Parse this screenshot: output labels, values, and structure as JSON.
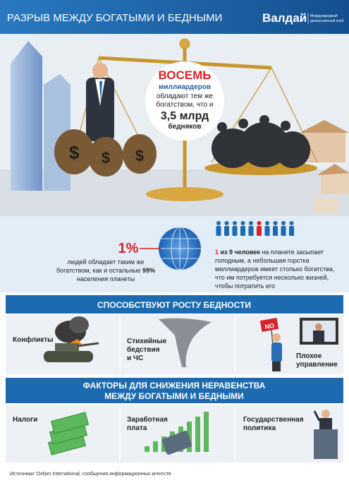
{
  "header": {
    "title": "РАЗРЫВ МЕЖДУ БОГАТЫМИ И БЕДНЫМИ",
    "brand": "Валдай",
    "brand_sub": [
      "Международный",
      "дискуссионный клуб"
    ]
  },
  "scale": {
    "headline": "ВОСЕМЬ",
    "subject": "миллиардеров",
    "lines": [
      "обладают тем же",
      "богатством, что и"
    ],
    "amount": "3,5 млрд",
    "object": "бедняков"
  },
  "stats": {
    "percent": "1%",
    "left": {
      "line1": "людей обладает таким же",
      "line2": "богатством, как и остальные",
      "line2_bold": "99%",
      "line3": "населения планеты"
    },
    "right": {
      "lead_number": "1",
      "lead": "из 9 человек",
      "line1": "на планете засыпает",
      "lines": [
        "голодным, а небольшая горстка",
        "миллиардеров имеет столько богатства,",
        "что им потребуется несколько жизней,",
        "чтобы потратить его"
      ]
    }
  },
  "sections": [
    {
      "title_lines": [
        "СПОСОБСТВУЮТ РОСТУ БЕДНОСТИ"
      ],
      "items": [
        {
          "label_lines": [
            "Конфликты"
          ]
        },
        {
          "label_lines": [
            "Стихийные",
            "бедствия",
            "и ЧС"
          ]
        },
        {
          "label_lines": [
            "Плохое",
            "управление"
          ]
        }
      ],
      "sign": "NO"
    },
    {
      "title_lines": [
        "ФАКТОРЫ ДЛЯ СНИЖЕНИЯ НЕРАВЕНСТВА",
        "МЕЖДУ БОГАТЫМИ И БЕДНЫМИ"
      ],
      "items": [
        {
          "label_lines": [
            "Налоги"
          ]
        },
        {
          "label_lines": [
            "Заработная",
            "плата"
          ]
        },
        {
          "label_lines": [
            "Государственная",
            "политика"
          ]
        }
      ]
    }
  ],
  "footer": "Источники: Oxfam International, сообщения информационных агентств"
}
